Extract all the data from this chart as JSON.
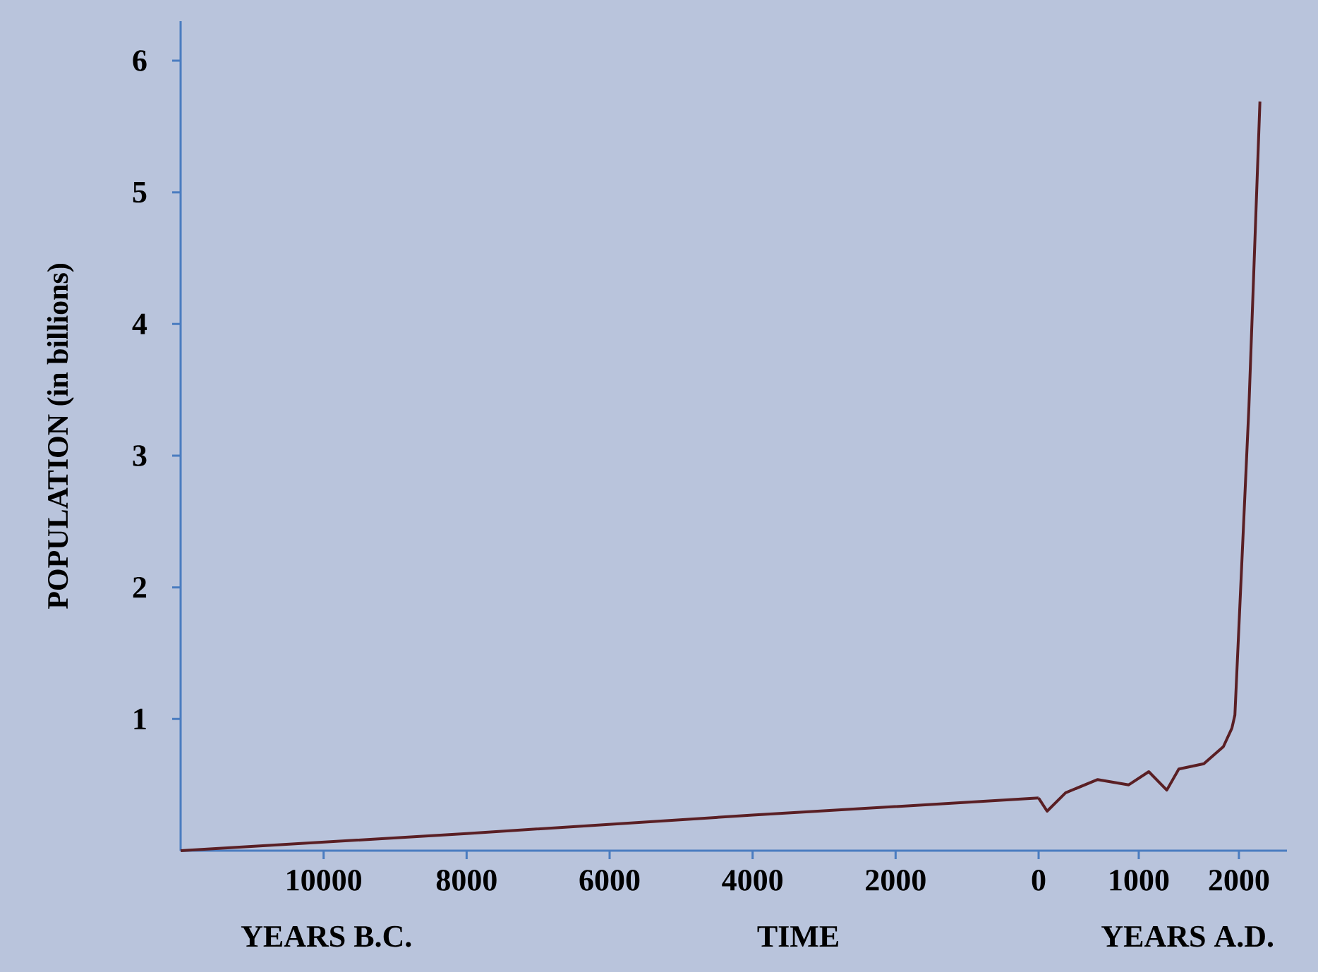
{
  "chart_data": [
    {
      "type": "line",
      "xlabel": "TIME",
      "ylabel": "POPULATION (in billions)",
      "annotations": [
        "YEARS B.C."
      ],
      "xlim": [
        -12000,
        0
      ],
      "ylim": [
        0,
        6.3
      ],
      "xticks": [
        {
          "value": -10000,
          "label": "10000"
        },
        {
          "value": -8000,
          "label": "8000"
        },
        {
          "value": -6000,
          "label": "6000"
        },
        {
          "value": -4000,
          "label": "4000"
        },
        {
          "value": -2000,
          "label": "2000"
        }
      ],
      "yticks": [
        1,
        2,
        3,
        4,
        5,
        6
      ],
      "series": [
        {
          "color": "#5a1f24",
          "x": [
            -12000,
            -8000,
            -4000,
            0
          ],
          "values": [
            0,
            0.13,
            0.27,
            0.4
          ]
        }
      ]
    },
    {
      "type": "line",
      "xlabel": "YEARS A.D.",
      "xlim": [
        0,
        2480
      ],
      "ylim": [
        0,
        6
      ],
      "yticks": [
        1,
        2,
        3,
        4,
        5,
        6
      ],
      "xticks": [
        0,
        1000,
        2000
      ],
      "tick_labels": "x",
      "series": [
        {
          "color": "#5a1f24",
          "x": [
            0,
            85,
            270,
            590,
            900,
            1100,
            1280,
            1400,
            1650,
            1845,
            1930,
            1960,
            2100,
            2210
          ],
          "values": [
            0.4,
            0.3,
            0.44,
            0.54,
            0.5,
            0.6,
            0.46,
            0.62,
            0.66,
            0.79,
            0.93,
            1.03,
            3.37,
            5.69
          ]
        }
      ]
    }
  ]
}
